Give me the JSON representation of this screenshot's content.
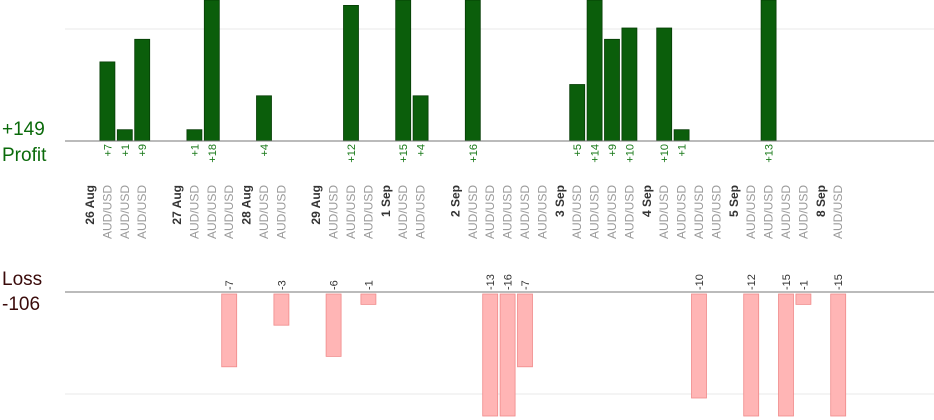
{
  "summary": {
    "profit_total": "+149",
    "profit_label": "Profit",
    "loss_label": "Loss",
    "loss_total": "-106"
  },
  "colors": {
    "profit_bar": "#0b5e0b",
    "profit_label": "#1a7a1a",
    "loss_bar": "#ffb5b5",
    "loss_bar_edge": "#f08a8a",
    "date_label": "#333333",
    "pair_label": "#9a9a9a",
    "baseline": "#777777",
    "grid": "#e8e8e8"
  },
  "chart_data": {
    "type": "bar",
    "description_order": "chronological trades, left to right",
    "dates": [
      {
        "label": "26 Aug",
        "slot": 0
      },
      {
        "label": "27 Aug",
        "slot": 5
      },
      {
        "label": "28 Aug",
        "slot": 9
      },
      {
        "label": "29 Aug",
        "slot": 13
      },
      {
        "label": "1 Sep",
        "slot": 17
      },
      {
        "label": "2 Sep",
        "slot": 21
      },
      {
        "label": "3 Sep",
        "slot": 27
      },
      {
        "label": "4 Sep",
        "slot": 32
      },
      {
        "label": "5 Sep",
        "slot": 37
      },
      {
        "label": "8 Sep",
        "slot": 42
      }
    ],
    "trades": [
      {
        "slot": 1,
        "pair": "AUD/USD",
        "value": 7,
        "label": "+7"
      },
      {
        "slot": 2,
        "pair": "AUD/USD",
        "value": 1,
        "label": "+1"
      },
      {
        "slot": 3,
        "pair": "AUD/USD",
        "value": 9,
        "label": "+9"
      },
      {
        "slot": 6,
        "pair": "AUD/USD",
        "value": 1,
        "label": "+1"
      },
      {
        "slot": 7,
        "pair": "AUD/USD",
        "value": 18,
        "label": "+18"
      },
      {
        "slot": 8,
        "pair": "AUD/USD",
        "value": -7,
        "label": "-7"
      },
      {
        "slot": 10,
        "pair": "AUD/USD",
        "value": 4,
        "label": "+4"
      },
      {
        "slot": 11,
        "pair": "AUD/USD",
        "value": -3,
        "label": "-3"
      },
      {
        "slot": 14,
        "pair": "AUD/USD",
        "value": -6,
        "label": "-6"
      },
      {
        "slot": 15,
        "pair": "AUD/USD",
        "value": 12,
        "label": "+12"
      },
      {
        "slot": 16,
        "pair": "AUD/USD",
        "value": -1,
        "label": "-1"
      },
      {
        "slot": 18,
        "pair": "AUD/USD",
        "value": 15,
        "label": "+15"
      },
      {
        "slot": 19,
        "pair": "AUD/USD",
        "value": 4,
        "label": "+4"
      },
      {
        "slot": 22,
        "pair": "AUD/USD",
        "value": 16,
        "label": "+16"
      },
      {
        "slot": 23,
        "pair": "AUD/USD",
        "value": -13,
        "label": "-13"
      },
      {
        "slot": 24,
        "pair": "AUD/USD",
        "value": -16,
        "label": "-16"
      },
      {
        "slot": 25,
        "pair": "AUD/USD",
        "value": -7,
        "label": "-7"
      },
      {
        "slot": 26,
        "pair": "AUD/USD",
        "value": 0,
        "label": ""
      },
      {
        "slot": 28,
        "pair": "AUD/USD",
        "value": 5,
        "label": "+5"
      },
      {
        "slot": 29,
        "pair": "AUD/USD",
        "value": 14,
        "label": "+14"
      },
      {
        "slot": 30,
        "pair": "AUD/USD",
        "value": 9,
        "label": "+9"
      },
      {
        "slot": 31,
        "pair": "AUD/USD",
        "value": 10,
        "label": "+10"
      },
      {
        "slot": 33,
        "pair": "AUD/USD",
        "value": 10,
        "label": "+10"
      },
      {
        "slot": 34,
        "pair": "AUD/USD",
        "value": 1,
        "label": "+1"
      },
      {
        "slot": 35,
        "pair": "AUD/USD",
        "value": -10,
        "label": "-10"
      },
      {
        "slot": 36,
        "pair": "AUD/USD",
        "value": 0,
        "label": ""
      },
      {
        "slot": 38,
        "pair": "AUD/USD",
        "value": -12,
        "label": "-12"
      },
      {
        "slot": 39,
        "pair": "AUD/USD",
        "value": 13,
        "label": "+13"
      },
      {
        "slot": 40,
        "pair": "AUD/USD",
        "value": -15,
        "label": "-15"
      },
      {
        "slot": 41,
        "pair": "AUD/USD",
        "value": -1,
        "label": "-1"
      },
      {
        "slot": 43,
        "pair": "AUD/USD",
        "value": -15,
        "label": "-15"
      }
    ],
    "profit_axis": {
      "ylim": [
        0,
        12
      ]
    },
    "loss_axis": {
      "ylim": [
        -12,
        0
      ]
    },
    "grid": true
  }
}
